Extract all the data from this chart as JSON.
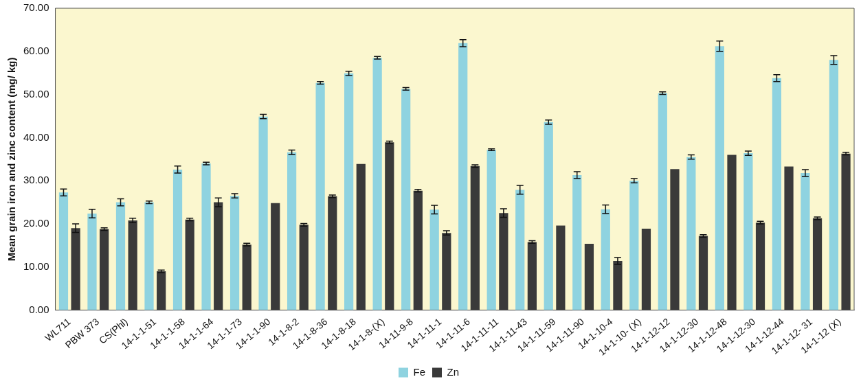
{
  "chart_data": {
    "type": "bar",
    "ylabel": "Mean grain iron and zinc content (mg/ kg)",
    "categories": [
      "WL711",
      "PBW 373",
      "CS(Phl)",
      "14-1-1-51",
      "14-1-1-58",
      "14-1-1-64",
      "14-1-1-73",
      "14-1-1-90",
      "14-1-8-2",
      "14-1-8-36",
      "14-1-8-18",
      "14-1-8-(X)",
      "14-11-9-8",
      "14-1-11-1",
      "14-1-11-6",
      "14-1-11-11",
      "14-1-11-43",
      "14-1-11-59",
      "14-1-11-90",
      "14-1-10-4",
      "14-1-10- (X)",
      "14-1-12-12",
      "14-1-12-30",
      "14-1-12-48",
      "14-1-12-30",
      "14-1-12-44",
      "14-1-12- 31",
      "14-1-12 (X)"
    ],
    "series": [
      {
        "name": "Fe",
        "color": "#8fd3e0",
        "values": [
          27.3,
          22.4,
          25.0,
          25.0,
          32.6,
          34.0,
          26.5,
          44.9,
          36.6,
          52.7,
          54.9,
          58.5,
          51.3,
          23.3,
          61.9,
          37.2,
          27.9,
          43.6,
          31.3,
          23.4,
          30.0,
          50.3,
          35.5,
          61.2,
          36.4,
          53.8,
          31.8,
          58.0
        ],
        "errors": [
          0.8,
          1.0,
          0.8,
          0.3,
          0.8,
          0.3,
          0.5,
          0.5,
          0.5,
          0.3,
          0.5,
          0.3,
          0.3,
          1.0,
          0.8,
          0.2,
          1.0,
          0.5,
          0.8,
          1.0,
          0.5,
          0.3,
          0.5,
          1.2,
          0.5,
          0.8,
          0.8,
          1.0
        ]
      },
      {
        "name": "Zn",
        "color": "#3a3a3a",
        "values": [
          19.0,
          18.8,
          20.8,
          9.0,
          21.0,
          25.0,
          15.2,
          24.8,
          19.8,
          26.4,
          33.9,
          38.9,
          27.7,
          17.9,
          33.4,
          22.5,
          15.8,
          19.6,
          15.4,
          11.4,
          18.9,
          32.7,
          17.2,
          36.0,
          20.3,
          33.3,
          21.3,
          36.3
        ],
        "errors": [
          1.0,
          0.3,
          0.5,
          0.3,
          0.3,
          1.0,
          0.3,
          null,
          0.3,
          0.3,
          null,
          0.3,
          0.3,
          0.5,
          0.3,
          1.0,
          0.3,
          null,
          null,
          0.8,
          null,
          null,
          0.3,
          null,
          0.3,
          null,
          0.3,
          0.3
        ]
      }
    ],
    "ylim": [
      0,
      70
    ],
    "yticks": [
      {
        "value": 0,
        "label": "0.00"
      },
      {
        "value": 10,
        "label": "10.00"
      },
      {
        "value": 20,
        "label": "20.00"
      },
      {
        "value": 30,
        "label": "30.00"
      },
      {
        "value": 40,
        "label": "40.00"
      },
      {
        "value": 50,
        "label": "50.00"
      },
      {
        "value": 60,
        "label": "60.00"
      },
      {
        "value": 70,
        "label": "70.00"
      }
    ],
    "grid": false,
    "legend": "bottom"
  }
}
